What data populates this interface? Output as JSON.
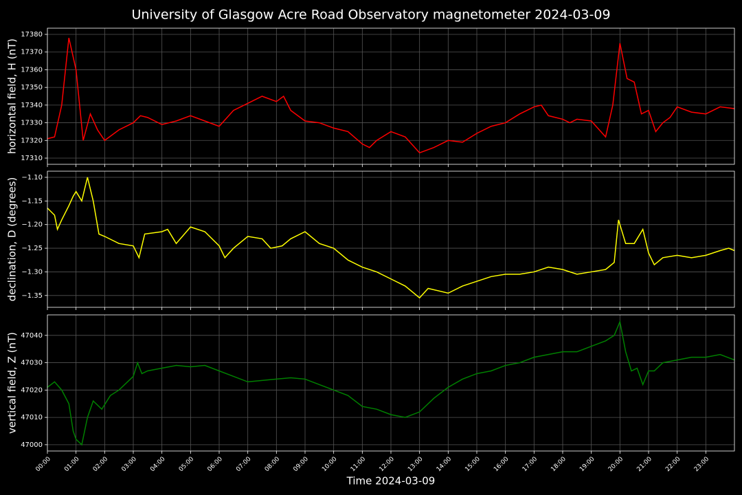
{
  "title": "University of Glasgow Acre Road Observatory magnetometer 2024-03-09",
  "chart_data": [
    {
      "type": "line",
      "ylabel": "horizontal field, H (nT)",
      "color": "#ff0000",
      "grid": true,
      "x": [
        0,
        0.25,
        0.5,
        0.75,
        1,
        1.25,
        1.5,
        1.75,
        2,
        2.5,
        3,
        3.25,
        3.5,
        4,
        4.5,
        5,
        5.5,
        6,
        6.5,
        7,
        7.5,
        8,
        8.25,
        8.5,
        9,
        9.5,
        10,
        10.5,
        11,
        11.25,
        11.5,
        12,
        12.5,
        13,
        13.5,
        14,
        14.5,
        15,
        15.5,
        16,
        16.5,
        17,
        17.25,
        17.5,
        18,
        18.25,
        18.5,
        19,
        19.5,
        19.75,
        20,
        20.25,
        20.5,
        20.75,
        21,
        21.25,
        21.5,
        21.75,
        22,
        22.5,
        23,
        23.5,
        24
      ],
      "values": [
        17321,
        17322,
        17340,
        17378,
        17360,
        17320,
        17335,
        17326,
        17320,
        17326,
        17330,
        17334,
        17333,
        17329,
        17331,
        17334,
        17331,
        17328,
        17337,
        17341,
        17345,
        17342,
        17345,
        17337,
        17331,
        17330,
        17327,
        17325,
        17318,
        17316,
        17320,
        17325,
        17322,
        17313,
        17316,
        17320,
        17319,
        17324,
        17328,
        17330,
        17335,
        17339,
        17340,
        17334,
        17332,
        17330,
        17332,
        17331,
        17322,
        17340,
        17375,
        17355,
        17353,
        17335,
        17337,
        17325,
        17330,
        17333,
        17339,
        17336,
        17335,
        17339,
        17338
      ],
      "xlim": [
        0,
        24
      ],
      "ylim": [
        17306.5,
        17383.5
      ],
      "yticks": [
        17310,
        17320,
        17330,
        17340,
        17350,
        17360,
        17370,
        17380
      ]
    },
    {
      "type": "line",
      "ylabel": "declination, D (degrees)",
      "color": "#ffff00",
      "grid": true,
      "x": [
        0,
        0.25,
        0.35,
        0.5,
        0.75,
        0.9,
        1,
        1.2,
        1.4,
        1.6,
        1.8,
        2,
        2.5,
        3,
        3.2,
        3.4,
        4,
        4.2,
        4.5,
        5,
        5.5,
        6,
        6.2,
        6.5,
        7,
        7.5,
        7.8,
        8.2,
        8.5,
        9,
        9.5,
        10,
        10.5,
        11,
        11.5,
        12,
        12.5,
        13,
        13.3,
        14,
        14.5,
        15,
        15.5,
        16,
        16.5,
        17,
        17.5,
        18,
        18.5,
        19,
        19.5,
        19.8,
        19.95,
        20.2,
        20.5,
        20.8,
        21,
        21.2,
        21.5,
        22,
        22.5,
        23,
        23.5,
        23.8,
        24
      ],
      "values": [
        -1.165,
        -1.18,
        -1.21,
        -1.19,
        -1.16,
        -1.14,
        -1.13,
        -1.15,
        -1.1,
        -1.15,
        -1.22,
        -1.225,
        -1.24,
        -1.245,
        -1.27,
        -1.22,
        -1.215,
        -1.21,
        -1.24,
        -1.205,
        -1.215,
        -1.245,
        -1.27,
        -1.25,
        -1.225,
        -1.23,
        -1.25,
        -1.245,
        -1.23,
        -1.215,
        -1.24,
        -1.25,
        -1.275,
        -1.29,
        -1.3,
        -1.315,
        -1.33,
        -1.355,
        -1.335,
        -1.345,
        -1.33,
        -1.32,
        -1.31,
        -1.305,
        -1.305,
        -1.3,
        -1.29,
        -1.295,
        -1.305,
        -1.3,
        -1.295,
        -1.28,
        -1.19,
        -1.24,
        -1.24,
        -1.21,
        -1.26,
        -1.285,
        -1.27,
        -1.265,
        -1.27,
        -1.265,
        -1.255,
        -1.25,
        -1.255
      ],
      "xlim": [
        0,
        24
      ],
      "ylim": [
        -1.375,
        -1.087
      ],
      "yticks": [
        {
          "value": -1.1,
          "label": "−1.10"
        },
        {
          "value": -1.15,
          "label": "−1.15"
        },
        {
          "value": -1.2,
          "label": "−1.20"
        },
        {
          "value": -1.25,
          "label": "−1.25"
        },
        {
          "value": -1.3,
          "label": "−1.30"
        },
        {
          "value": -1.35,
          "label": "−1.35"
        }
      ]
    },
    {
      "type": "line",
      "ylabel": "vertical field, Z (nT)",
      "xlabel": "Time 2024-03-09",
      "color": "#008000",
      "grid": true,
      "x": [
        0,
        0.25,
        0.5,
        0.75,
        0.9,
        1,
        1.2,
        1.4,
        1.6,
        1.9,
        2.2,
        2.5,
        3,
        3.15,
        3.3,
        3.5,
        4,
        4.5,
        5,
        5.5,
        6,
        6.5,
        7,
        7.5,
        8,
        8.5,
        9,
        9.5,
        10,
        10.5,
        11,
        11.5,
        12,
        12.5,
        13,
        13.5,
        14,
        14.5,
        15,
        15.5,
        16,
        16.5,
        17,
        17.5,
        18,
        18.5,
        19,
        19.5,
        19.8,
        20,
        20.2,
        20.4,
        20.6,
        20.8,
        21,
        21.2,
        21.5,
        22,
        22.5,
        23,
        23.5,
        24
      ],
      "values": [
        47021,
        47023,
        47020,
        47015,
        47005,
        47002,
        47000,
        47010,
        47016,
        47013,
        47018,
        47020,
        47025,
        47030,
        47026,
        47027,
        47028,
        47029,
        47028.5,
        47029,
        47027,
        47025,
        47023,
        47023.5,
        47024,
        47024.5,
        47024,
        47022,
        47020,
        47018,
        47014,
        47013,
        47011,
        47010,
        47012,
        47017,
        47021,
        47024,
        47026,
        47027,
        47029,
        47030,
        47032,
        47033,
        47034,
        47034,
        47036,
        47038,
        47040,
        47045,
        47034,
        47027,
        47028,
        47022,
        47027,
        47027,
        47030,
        47031,
        47032,
        47032,
        47033,
        47031
      ],
      "xlim": [
        0,
        24
      ],
      "ylim": [
        46997.7,
        47047.5
      ],
      "yticks": [
        47000,
        47010,
        47020,
        47030,
        47040
      ],
      "xticks": [
        {
          "value": 0,
          "label": "00:00"
        },
        {
          "value": 1,
          "label": "01:00"
        },
        {
          "value": 2,
          "label": "02:00"
        },
        {
          "value": 3,
          "label": "03:00"
        },
        {
          "value": 4,
          "label": "04:00"
        },
        {
          "value": 5,
          "label": "05:00"
        },
        {
          "value": 6,
          "label": "06:00"
        },
        {
          "value": 7,
          "label": "07:00"
        },
        {
          "value": 8,
          "label": "08:00"
        },
        {
          "value": 9,
          "label": "09:00"
        },
        {
          "value": 10,
          "label": "10:00"
        },
        {
          "value": 11,
          "label": "11:00"
        },
        {
          "value": 12,
          "label": "12:00"
        },
        {
          "value": 13,
          "label": "13:00"
        },
        {
          "value": 14,
          "label": "14:00"
        },
        {
          "value": 15,
          "label": "15:00"
        },
        {
          "value": 16,
          "label": "16:00"
        },
        {
          "value": 17,
          "label": "17:00"
        },
        {
          "value": 18,
          "label": "18:00"
        },
        {
          "value": 19,
          "label": "19:00"
        },
        {
          "value": 20,
          "label": "20:00"
        },
        {
          "value": 21,
          "label": "21:00"
        },
        {
          "value": 22,
          "label": "22:00"
        },
        {
          "value": 23,
          "label": "23:00"
        }
      ]
    }
  ]
}
